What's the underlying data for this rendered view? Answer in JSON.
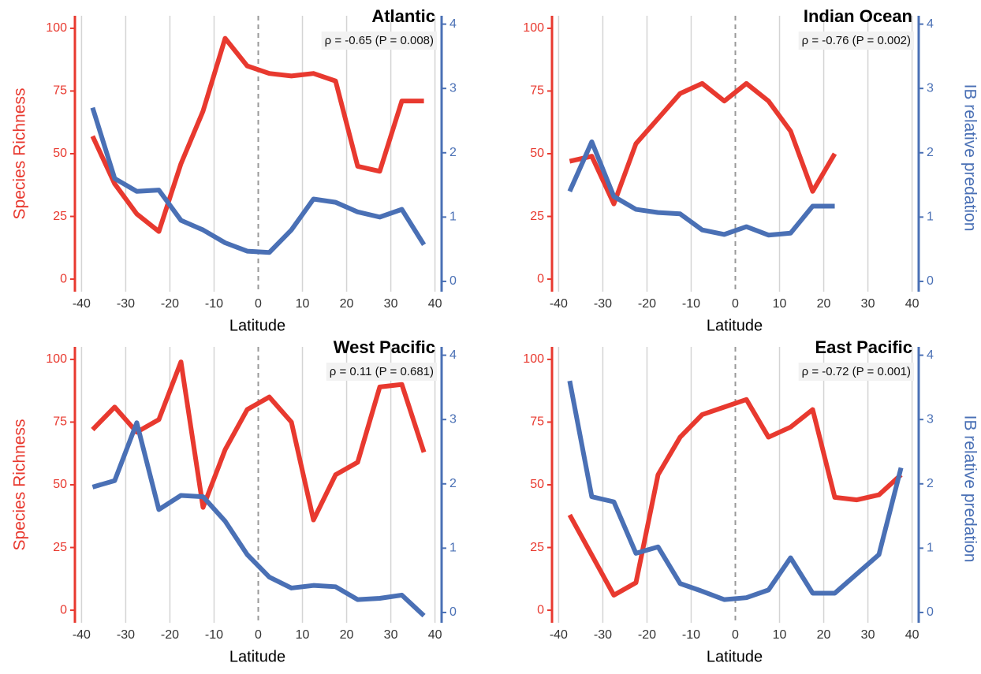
{
  "chart_data": [
    {
      "type": "line",
      "title": "Atlantic",
      "annotation": "ρ = -0.65 (P = 0.008)",
      "x_label": "Latitude",
      "y_label": "Species Richness",
      "x": [
        -37.5,
        -32.5,
        -27.5,
        -22.5,
        -17.5,
        -12.5,
        -7.5,
        -2.5,
        2.5,
        7.5,
        12.5,
        17.5,
        22.5,
        27.5,
        32.5,
        37.5
      ],
      "series": [
        {
          "color": "#e8392f",
          "values": [
            57,
            38,
            26,
            19,
            46,
            67,
            96,
            85,
            82,
            81,
            82,
            79,
            45,
            43,
            71,
            71
          ]
        },
        {
          "color": "#4a70b5",
          "axis": "y2",
          "values": [
            2.7,
            1.6,
            1.4,
            1.42,
            0.95,
            0.8,
            0.6,
            0.47,
            0.45,
            0.8,
            1.28,
            1.23,
            1.08,
            1.0,
            1.12,
            0.57
          ]
        }
      ],
      "xlim": [
        -41.5,
        41.5
      ],
      "xticks": [
        -40,
        -30,
        -20,
        -10,
        0,
        10,
        20,
        30,
        40
      ],
      "ylim": [
        -5,
        105
      ],
      "yticks": [
        0,
        25,
        50,
        75,
        100
      ],
      "y2lim": [
        -0.16,
        4.13
      ],
      "y2ticks": [
        0,
        1,
        2,
        3,
        4
      ],
      "grid": true
    },
    {
      "type": "line",
      "title": "Indian Ocean",
      "annotation": "ρ = -0.76 (P = 0.002)",
      "x_label": "Latitude",
      "y2_label": "IB relative predation",
      "x": [
        -37.5,
        -32.5,
        -27.5,
        -22.5,
        -17.5,
        -12.5,
        -7.5,
        -2.5,
        2.5,
        7.5,
        12.5,
        17.5,
        22.5,
        27.5,
        32.5,
        37.5
      ],
      "series": [
        {
          "color": "#e8392f",
          "values": [
            47,
            49,
            30,
            54,
            64,
            74,
            78,
            71,
            78,
            71,
            59,
            35,
            50,
            null,
            null,
            null
          ]
        },
        {
          "color": "#4a70b5",
          "axis": "y2",
          "values": [
            1.4,
            2.17,
            1.32,
            1.12,
            1.07,
            1.05,
            0.8,
            0.73,
            0.85,
            0.72,
            0.75,
            1.17,
            1.17,
            null,
            null,
            null
          ]
        }
      ],
      "xlim": [
        -41.5,
        41.5
      ],
      "xticks": [
        -40,
        -30,
        -20,
        -10,
        0,
        10,
        20,
        30,
        40
      ],
      "ylim": [
        -5,
        105
      ],
      "yticks": [
        0,
        25,
        50,
        75,
        100
      ],
      "y2lim": [
        -0.16,
        4.13
      ],
      "y2ticks": [
        0,
        1,
        2,
        3,
        4
      ],
      "grid": true
    },
    {
      "type": "line",
      "title": "West Pacific",
      "annotation": "ρ = 0.11 (P = 0.681)",
      "x_label": "Latitude",
      "y_label": "Species Richness",
      "x": [
        -37.5,
        -32.5,
        -27.5,
        -22.5,
        -17.5,
        -12.5,
        -7.5,
        -2.5,
        2.5,
        7.5,
        12.5,
        17.5,
        22.5,
        27.5,
        32.5,
        37.5
      ],
      "series": [
        {
          "color": "#e8392f",
          "values": [
            72,
            81,
            71,
            76,
            99,
            41,
            64,
            80,
            85,
            75,
            36,
            54,
            59,
            89,
            90,
            63
          ]
        },
        {
          "color": "#4a70b5",
          "axis": "y2",
          "values": [
            1.95,
            2.05,
            2.95,
            1.6,
            1.82,
            1.8,
            1.42,
            0.9,
            0.55,
            0.38,
            0.42,
            0.4,
            0.2,
            0.22,
            0.27,
            -0.05
          ]
        }
      ],
      "xlim": [
        -41.5,
        41.5
      ],
      "xticks": [
        -40,
        -30,
        -20,
        -10,
        0,
        10,
        20,
        30,
        40
      ],
      "ylim": [
        -5,
        105
      ],
      "yticks": [
        0,
        25,
        50,
        75,
        100
      ],
      "y2lim": [
        -0.16,
        4.13
      ],
      "y2ticks": [
        0,
        1,
        2,
        3,
        4
      ],
      "grid": true
    },
    {
      "type": "line",
      "title": "East Pacific",
      "annotation": "ρ = -0.72 (P = 0.001)",
      "x_label": "Latitude",
      "y2_label": "IB relative predation",
      "x": [
        -37.5,
        -32.5,
        -27.5,
        -22.5,
        -17.5,
        -12.5,
        -7.5,
        -2.5,
        2.5,
        7.5,
        12.5,
        17.5,
        22.5,
        27.5,
        32.5,
        37.5
      ],
      "series": [
        {
          "color": "#e8392f",
          "values": [
            38,
            22,
            6,
            11,
            54,
            69,
            78,
            81,
            84,
            69,
            73,
            80,
            45,
            44,
            46,
            54
          ]
        },
        {
          "color": "#4a70b5",
          "axis": "y2",
          "values": [
            3.6,
            1.8,
            1.72,
            0.92,
            1.02,
            0.45,
            0.33,
            0.2,
            0.23,
            0.35,
            0.85,
            0.3,
            0.3,
            0.6,
            0.9,
            2.25
          ]
        }
      ],
      "xlim": [
        -41.5,
        41.5
      ],
      "xticks": [
        -40,
        -30,
        -20,
        -10,
        0,
        10,
        20,
        30,
        40
      ],
      "ylim": [
        -5,
        105
      ],
      "yticks": [
        0,
        25,
        50,
        75,
        100
      ],
      "y2lim": [
        -0.16,
        4.13
      ],
      "y2ticks": [
        0,
        1,
        2,
        3,
        4
      ],
      "grid": true
    }
  ]
}
